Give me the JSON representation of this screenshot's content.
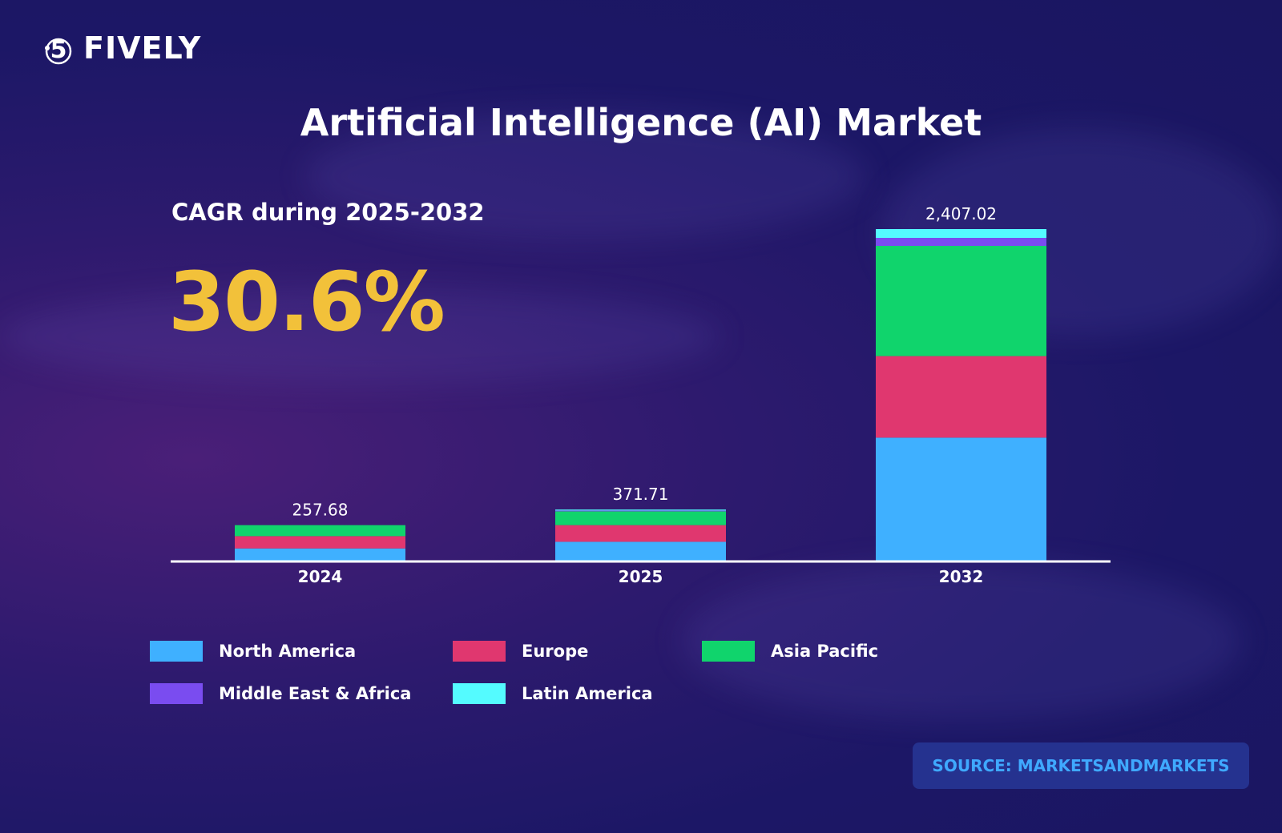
{
  "brand": {
    "name": "FIVELY",
    "icon": "five-orbit-logo-icon"
  },
  "header": {
    "title": "Artificial Intelligence (AI) Market"
  },
  "cagr": {
    "label": "CAGR during 2025-2032",
    "value": "30.6%"
  },
  "source": "SOURCE: MARKETSANDMARKETS",
  "colors": {
    "accent": "#f2c13a",
    "source_text": "#3fa9ff"
  },
  "chart_data": {
    "type": "bar",
    "stacked": true,
    "title": "",
    "xlabel": "",
    "ylabel": "",
    "categories": [
      "2024",
      "2025",
      "2032"
    ],
    "totals": [
      "257.68",
      "371.71",
      "2,407.02"
    ],
    "total_values": [
      257.68,
      371.71,
      2407.02
    ],
    "ylim": [
      0,
      2407.02
    ],
    "grid": false,
    "legend_placement": "bottom",
    "series": [
      {
        "name": "North America",
        "color": "#3fb0ff",
        "values": [
          89,
          137,
          893
        ]
      },
      {
        "name": "Europe",
        "color": "#e0376f",
        "values": [
          89,
          121,
          592
        ]
      },
      {
        "name": "Asia Pacific",
        "color": "#10d46c",
        "values": [
          80,
          100,
          800
        ]
      },
      {
        "name": "Middle East & Africa",
        "color": "#7a4cf0",
        "values": [
          0,
          6,
          58
        ]
      },
      {
        "name": "Latin America",
        "color": "#54fbff",
        "values": [
          0,
          7,
          64
        ]
      }
    ]
  }
}
